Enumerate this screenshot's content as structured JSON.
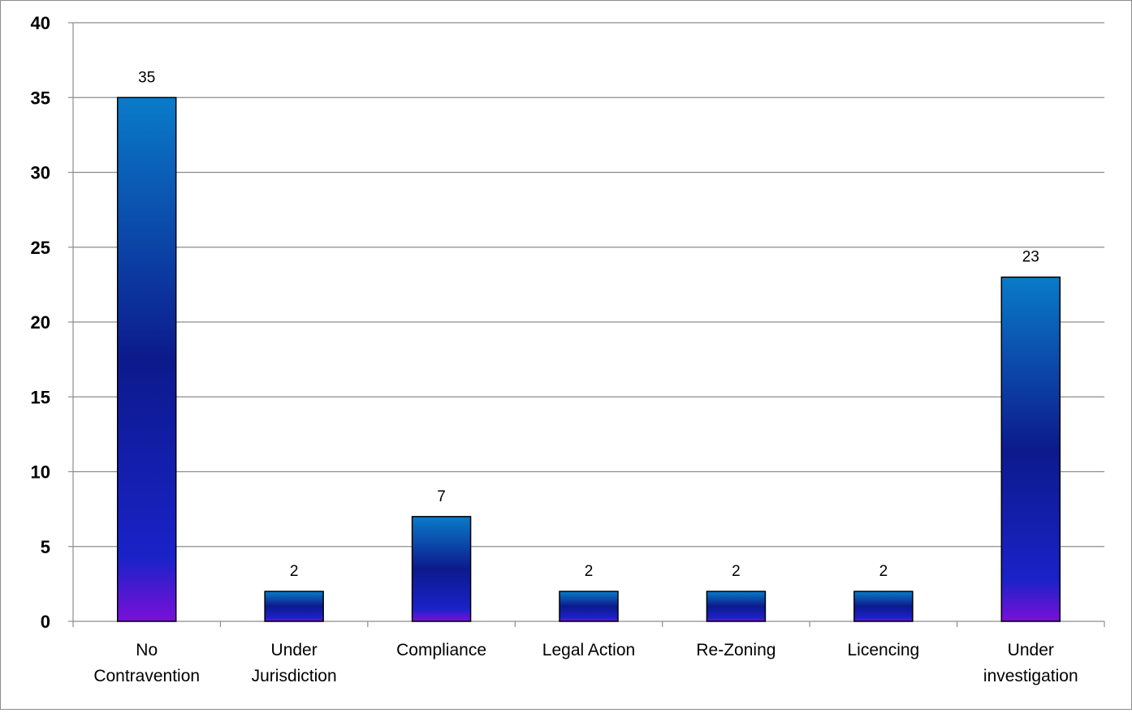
{
  "chart_data": {
    "type": "bar",
    "categories": [
      [
        "No",
        "Contravention"
      ],
      [
        "Under",
        "Jurisdiction"
      ],
      [
        "Compliance"
      ],
      [
        "Legal Action"
      ],
      [
        "Re-Zoning"
      ],
      [
        "Licencing"
      ],
      [
        "Under",
        "investigation"
      ]
    ],
    "values": [
      35,
      2,
      7,
      2,
      2,
      2,
      23
    ],
    "data_labels": [
      "35",
      "2",
      "7",
      "2",
      "2",
      "2",
      "23"
    ],
    "y_ticks": [
      "0",
      "5",
      "10",
      "15",
      "20",
      "25",
      "30",
      "35",
      "40"
    ],
    "ylim": [
      0,
      40
    ],
    "grid": true,
    "legend": "none",
    "colors": {
      "bar_top": "#0a7bc8",
      "bar_mid": "#0c1a8c",
      "bar_bottom": "#7a10d8",
      "bar_border": "#000000",
      "grid": "#8c8c8c",
      "axis": "#8c8c8c"
    }
  }
}
